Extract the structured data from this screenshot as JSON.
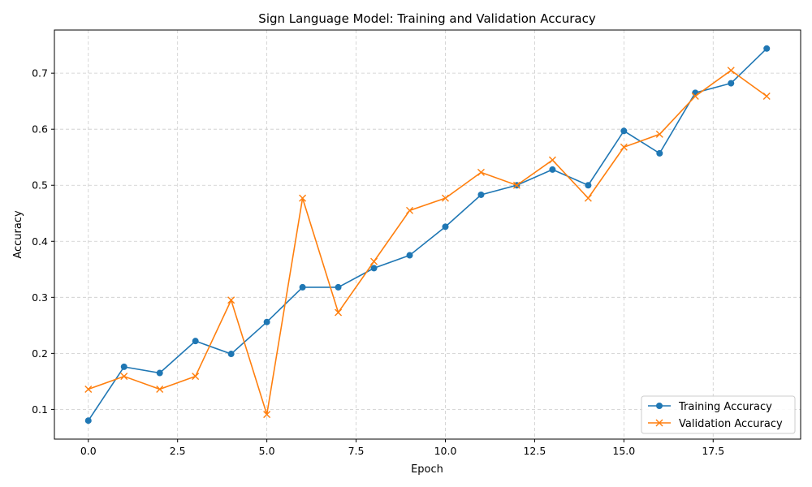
{
  "chart_data": {
    "type": "line",
    "title": "Sign Language Model: Training and Validation Accuracy",
    "xlabel": "Epoch",
    "ylabel": "Accuracy",
    "xlim": [
      -0.95,
      19.95
    ],
    "ylim": [
      0.047,
      0.777
    ],
    "xticks": [
      0.0,
      2.5,
      5.0,
      7.5,
      10.0,
      12.5,
      15.0,
      17.5
    ],
    "xtick_labels": [
      "0.0",
      "2.5",
      "5.0",
      "7.5",
      "10.0",
      "12.5",
      "15.0",
      "17.5"
    ],
    "yticks": [
      0.1,
      0.2,
      0.3,
      0.4,
      0.5,
      0.6,
      0.7
    ],
    "ytick_labels": [
      "0.1",
      "0.2",
      "0.3",
      "0.4",
      "0.5",
      "0.6",
      "0.7"
    ],
    "grid": true,
    "legend_position": "lower-right",
    "x": [
      0,
      1,
      2,
      3,
      4,
      5,
      6,
      7,
      8,
      9,
      10,
      11,
      12,
      13,
      14,
      15,
      16,
      17,
      18,
      19
    ],
    "series": [
      {
        "name": "Training Accuracy",
        "color": "#1f77b4",
        "marker": "circle",
        "values": [
          0.08,
          0.176,
          0.165,
          0.222,
          0.199,
          0.256,
          0.318,
          0.318,
          0.352,
          0.375,
          0.426,
          0.483,
          0.5,
          0.528,
          0.5,
          0.597,
          0.557,
          0.665,
          0.682,
          0.744
        ]
      },
      {
        "name": "Validation Accuracy",
        "color": "#ff7f0e",
        "marker": "x",
        "values": [
          0.136,
          0.159,
          0.136,
          0.159,
          0.295,
          0.091,
          0.477,
          0.273,
          0.364,
          0.455,
          0.477,
          0.523,
          0.5,
          0.545,
          0.477,
          0.568,
          0.591,
          0.659,
          0.705,
          0.659
        ]
      }
    ]
  }
}
